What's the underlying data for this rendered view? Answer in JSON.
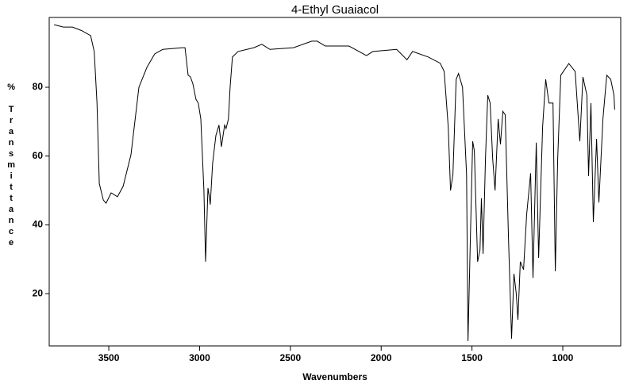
{
  "chart_data": {
    "type": "line",
    "title": "4-Ethyl Guaiacol",
    "x_label": "Wavenumbers",
    "y_label": "% Transmittance",
    "xlim": [
      3828,
      681
    ],
    "ylim": [
      4.8,
      100.3
    ],
    "xticks": [
      3500,
      3000,
      2500,
      2000,
      1500,
      1000
    ],
    "yticks": [
      20,
      40,
      60,
      80
    ],
    "series": [
      {
        "name": "4-Ethyl Guaiacol",
        "color": "#000000",
        "x": [
          3801,
          3750,
          3700,
          3650,
          3600,
          3580,
          3565,
          3552,
          3530,
          3515,
          3487,
          3452,
          3421,
          3378,
          3334,
          3290,
          3247,
          3203,
          3094,
          3080,
          3063,
          3050,
          3037,
          3020,
          3007,
          2993,
          2976,
          2967,
          2954,
          2945,
          2941,
          2928,
          2910,
          2893,
          2880,
          2862,
          2854,
          2841,
          2832,
          2819,
          2788,
          2701,
          2657,
          2613,
          2483,
          2382,
          2352,
          2308,
          2177,
          2081,
          2046,
          1915,
          1858,
          1827,
          1740,
          1675,
          1653,
          1631,
          1618,
          1605,
          1587,
          1574,
          1552,
          1530,
          1522,
          1509,
          1496,
          1487,
          1469,
          1456,
          1448,
          1439,
          1426,
          1413,
          1400,
          1386,
          1373,
          1356,
          1343,
          1330,
          1317,
          1299,
          1282,
          1269,
          1256,
          1247,
          1234,
          1216,
          1199,
          1177,
          1164,
          1146,
          1133,
          1111,
          1094,
          1076,
          1054,
          1041,
          1028,
          1011,
          967,
          932,
          906,
          889,
          867,
          858,
          845,
          832,
          814,
          801,
          779,
          758,
          736,
          718,
          714
        ],
        "values": [
          98.2,
          97.5,
          97.5,
          96.5,
          95,
          90.4,
          75.4,
          52,
          47.2,
          46.3,
          49.3,
          48.2,
          51.2,
          60.4,
          80,
          85.8,
          89.7,
          91,
          91.5,
          91.5,
          83.5,
          83,
          81,
          76.5,
          75.4,
          70.8,
          50,
          29.3,
          50.7,
          47.7,
          45.9,
          58,
          66,
          69,
          62.7,
          69,
          68,
          70.8,
          80,
          88.8,
          90.4,
          91.5,
          92.5,
          91,
          91.5,
          93.4,
          93.4,
          92,
          92,
          89.2,
          90.4,
          91,
          88,
          90.4,
          88.8,
          87,
          84.6,
          68.5,
          50,
          54.6,
          82.3,
          84,
          80,
          54.6,
          6.2,
          36.2,
          64.3,
          61.5,
          29.3,
          32.7,
          47.7,
          31.6,
          59.2,
          77.7,
          75.4,
          59.2,
          50,
          70.8,
          63.4,
          73,
          72,
          36.2,
          6.9,
          25.8,
          20,
          12.4,
          29.3,
          27,
          43,
          55,
          24.6,
          63.9,
          30.4,
          68.5,
          82.3,
          75.4,
          75.4,
          26.5,
          59.2,
          83.5,
          86.9,
          84.6,
          64.3,
          83,
          77.7,
          54.2,
          75.4,
          40.8,
          65,
          46.5,
          70.8,
          83.5,
          82.3,
          77.7,
          73.5
        ]
      }
    ]
  }
}
